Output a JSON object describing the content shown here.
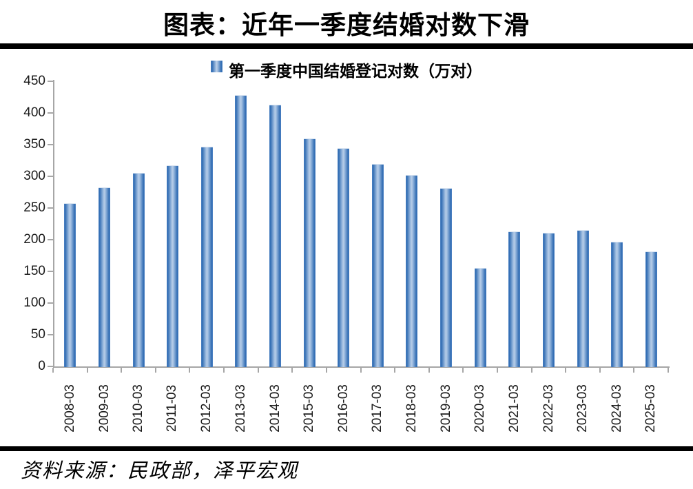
{
  "title": "图表：近年一季度结婚对数下滑",
  "legend": {
    "label": "第一季度中国结婚登记对数（万对）",
    "marker_color": "#4F81BD"
  },
  "source": "资料来源：民政部，泽平宏观",
  "colors": {
    "bar_edge": "#2F6BB2",
    "bar_center": "#B7CDE8",
    "bar_outer": "#5588C6",
    "axis": "#A6A6A6",
    "text": "#1A1A1A",
    "rule": "#000000"
  },
  "chart_data": {
    "type": "bar",
    "title": "第一季度中国结婚登记对数（万对）",
    "categories": [
      "2008-03",
      "2009-03",
      "2010-03",
      "2011-03",
      "2012-03",
      "2013-03",
      "2014-03",
      "2015-03",
      "2016-03",
      "2017-03",
      "2018-03",
      "2019-03",
      "2020-03",
      "2021-03",
      "2022-03",
      "2023-03",
      "2024-03",
      "2025-03"
    ],
    "values": [
      257.7,
      282.5,
      305.2,
      317.6,
      346.8,
      428.2,
      413.1,
      360.0,
      344.8,
      319.8,
      301.7,
      281.5,
      155.7,
      213.2,
      210.7,
      214.7,
      196.9,
      181.0
    ],
    "xlabel": "",
    "ylabel": "",
    "ylim": [
      0,
      450
    ],
    "yticks": [
      0,
      50,
      100,
      150,
      200,
      250,
      300,
      350,
      400,
      450
    ],
    "grid": false,
    "legend_position": "top-center",
    "bar_orientation": "vertical"
  }
}
